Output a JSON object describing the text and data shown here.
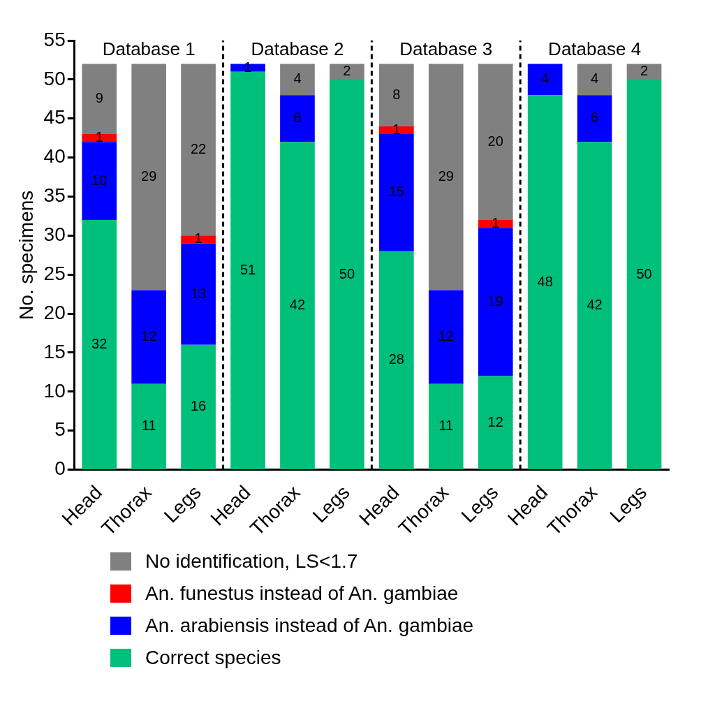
{
  "chart_data": {
    "type": "bar",
    "stacked": true,
    "ylabel": "No. specimens",
    "categories": [
      "Head",
      "Thorax",
      "Legs",
      "Head",
      "Thorax",
      "Legs",
      "Head",
      "Thorax",
      "Legs",
      "Head",
      "Thorax",
      "Legs"
    ],
    "series": [
      {
        "name": "Correct species",
        "color": "#00bf7a",
        "values": [
          32,
          11,
          16,
          51,
          42,
          50,
          28,
          11,
          12,
          48,
          42,
          50
        ]
      },
      {
        "name": "An. arabiensis instead of An. gambiae",
        "color": "#0000ff",
        "values": [
          10,
          12,
          13,
          1,
          6,
          null,
          15,
          12,
          19,
          4,
          6,
          null
        ]
      },
      {
        "name": "An. funestus instead of An. gambiae",
        "color": "#ff0000",
        "values": [
          1,
          null,
          1,
          null,
          null,
          null,
          1,
          null,
          1,
          null,
          null,
          null
        ]
      },
      {
        "name": "No identification, LS<1.7",
        "color": "#808080",
        "values": [
          9,
          29,
          22,
          null,
          4,
          2,
          8,
          29,
          20,
          null,
          4,
          2
        ]
      }
    ],
    "ylim": [
      0,
      55
    ],
    "yticks": [
      0,
      5,
      10,
      15,
      20,
      25,
      30,
      35,
      40,
      45,
      50,
      55
    ],
    "grid": false,
    "legend": "bottom",
    "data_labels": true,
    "annotations": [
      "Database 1",
      "Database 2",
      "Database 3",
      "Database 4"
    ]
  }
}
